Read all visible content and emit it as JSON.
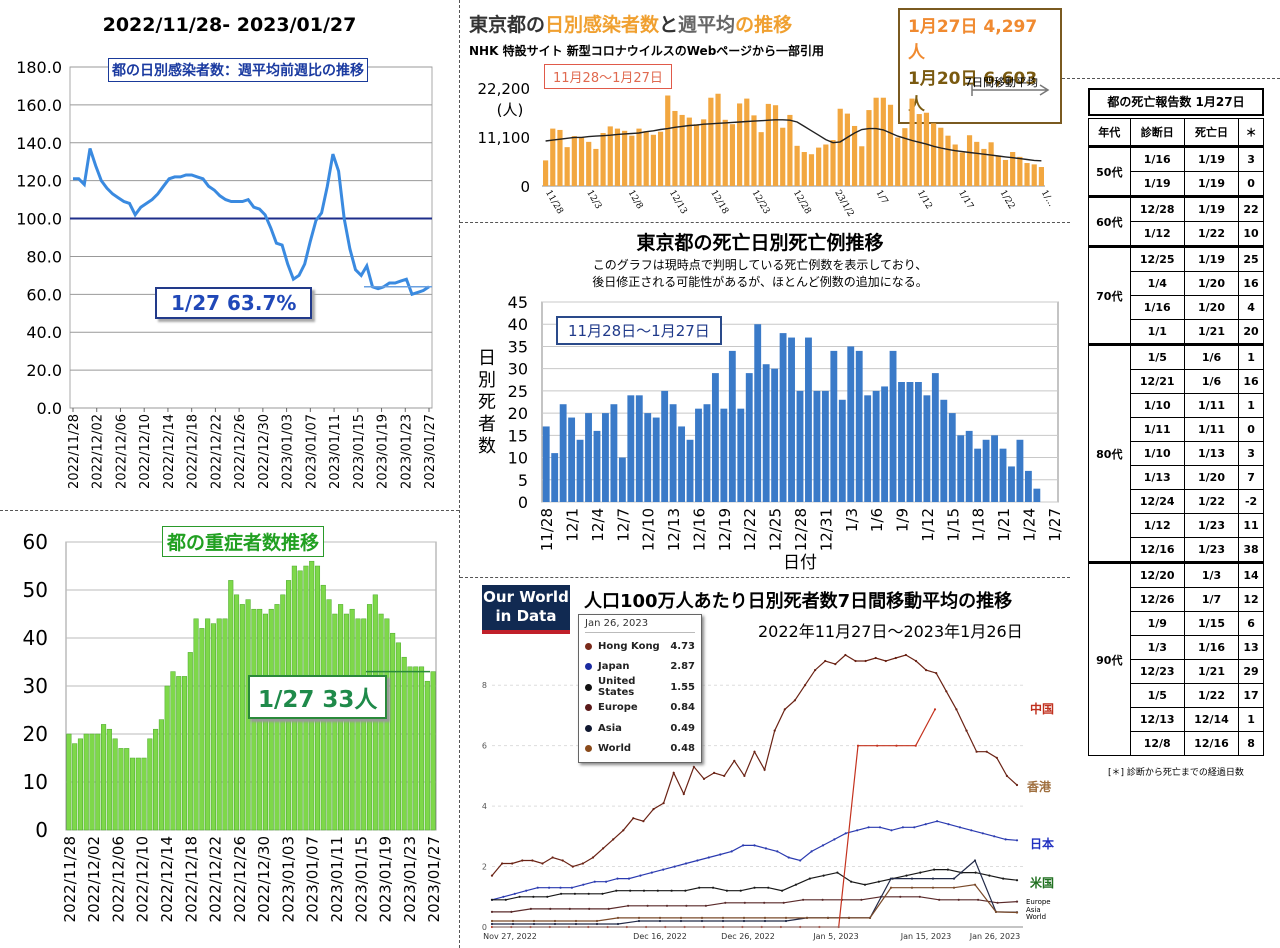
{
  "header": {
    "date_range": "2022/11/28- 2023/01/27"
  },
  "panel_ratio": {
    "inner_title": "都の日別感染者数：週平均前週比の推移",
    "annotation": "1/27 63.7%",
    "chart_data": {
      "type": "line",
      "title": "都の日別感染者数：週平均前週比の推移",
      "ylim": [
        0,
        180
      ],
      "yticks": [
        "0.0",
        "20.0",
        "40.0",
        "60.0",
        "80.0",
        "100.0",
        "120.0",
        "140.0",
        "160.0",
        "180.0"
      ],
      "xlabels": [
        "2022/11/28",
        "2022/12/02",
        "2022/12/06",
        "2022/12/10",
        "2022/12/14",
        "2022/12/18",
        "2022/12/22",
        "2022/12/26",
        "2022/12/30",
        "2023/01/03",
        "2023/01/07",
        "2023/01/11",
        "2023/01/15",
        "2023/01/19",
        "2023/01/23",
        "2023/01/27"
      ],
      "reference_line": 100,
      "values": [
        121,
        121,
        118,
        137,
        128,
        120,
        116,
        113,
        111,
        109,
        108,
        102,
        106,
        108,
        110,
        113,
        117,
        121,
        122,
        122,
        123,
        123,
        122,
        121,
        117,
        115,
        112,
        110,
        109,
        109,
        109,
        110,
        106,
        105,
        102,
        95,
        87,
        86,
        76,
        68,
        70,
        76,
        88,
        99,
        103,
        117,
        134,
        125,
        100,
        84,
        73,
        70,
        75,
        64,
        63,
        64,
        66,
        66,
        67,
        68,
        60,
        61,
        62,
        64
      ]
    }
  },
  "panel_severe": {
    "inner_title": "都の重症者数推移",
    "annotation": "1/27 33人",
    "chart_data": {
      "type": "bar",
      "title": "都の重症者数推移",
      "ylim": [
        0,
        60
      ],
      "yticks": [
        "0",
        "10",
        "20",
        "30",
        "40",
        "50",
        "60"
      ],
      "xlabels": [
        "2022/11/28",
        "2022/12/02",
        "2022/12/06",
        "2022/12/10",
        "2022/12/14",
        "2022/12/18",
        "2022/12/22",
        "2022/12/26",
        "2022/12/30",
        "2023/01/03",
        "2023/01/07",
        "2023/01/11",
        "2023/01/15",
        "2023/01/19",
        "2023/01/23",
        "2023/01/27"
      ],
      "values": [
        20,
        18,
        19,
        20,
        20,
        20,
        22,
        21,
        19,
        17,
        17,
        15,
        15,
        15,
        19,
        21,
        23,
        30,
        33,
        32,
        32,
        37,
        44,
        42,
        44,
        43,
        44,
        44,
        52,
        49,
        47,
        48,
        46,
        46,
        45,
        46,
        47,
        49,
        52,
        55,
        54,
        55,
        56,
        55,
        51,
        48,
        45,
        47,
        45,
        46,
        44,
        44,
        47,
        49,
        45,
        44,
        41,
        39,
        36,
        34,
        34,
        34,
        31,
        33
      ]
    }
  },
  "panel_cases": {
    "title_part1": "東京都の",
    "title_part2": "日別感染者数",
    "title_part3": "と",
    "title_part4": "週平均",
    "title_part5": "の推移",
    "subtitle": "NHK 特設サイト 新型コロナウイルスのWebページから一部引用",
    "range_label": "11月28～1月27日",
    "legend_avg": "7日間移動平均",
    "callout_line1": "1月27日 4,297人",
    "callout_line2": "1月20日 6,603人",
    "chart_data": {
      "type": "bar",
      "title": "東京都の日別感染者数と週平均の推移",
      "yticks": [
        "0",
        "11,100",
        "22,200"
      ],
      "ylabel": "(人)",
      "ylim": [
        0,
        22200
      ],
      "xlabels": [
        "11/28",
        "12/3",
        "12/8",
        "12/13",
        "12/18",
        "12/23",
        "12/28",
        "23/1/2",
        "1/7",
        "1/12",
        "1/17",
        "1/22",
        "1/..."
      ],
      "values": [
        5800,
        13000,
        12700,
        8800,
        11300,
        11100,
        10000,
        8400,
        12000,
        13500,
        13000,
        12500,
        11400,
        13000,
        12400,
        11600,
        12300,
        20500,
        17000,
        16100,
        15500,
        14000,
        15100,
        20000,
        20900,
        15000,
        14000,
        18700,
        19800,
        16000,
        12200,
        18600,
        18300,
        13200,
        16100,
        9100,
        7700,
        7200,
        8700,
        9400,
        10400,
        17500,
        16400,
        13600,
        9000,
        17200,
        20000,
        20000,
        18400,
        11000,
        13100,
        19800,
        16300,
        16600,
        14200,
        13200,
        11400,
        9400,
        7600,
        11500,
        10000,
        8400,
        9900,
        6900,
        5900,
        7700,
        6600,
        5200,
        4900,
        4300
      ],
      "average": [
        10200,
        10400,
        10600,
        10800,
        11000,
        11000,
        11200,
        11300,
        11400,
        11500,
        11700,
        11800,
        11900,
        12000,
        12300,
        12500,
        12800,
        13000,
        13300,
        13500,
        13700,
        13800,
        14000,
        14100,
        14200,
        14300,
        14400,
        14500,
        14600,
        14700,
        14800,
        14900,
        15000,
        15000,
        14900,
        14500,
        13500,
        12500,
        11500,
        10500,
        9800,
        10000,
        11000,
        12000,
        12800,
        13000,
        13000,
        12700,
        12000,
        11300,
        10800,
        10300,
        9900,
        9500,
        9000,
        8600,
        8300,
        8000,
        7800,
        7600,
        7400,
        7200,
        7000,
        6800,
        6600,
        6400,
        6200,
        6000,
        5800,
        5700
      ]
    }
  },
  "panel_deaths_daily": {
    "title": "東京都の死亡日別死亡例推移",
    "note_line1": "このグラフは現時点で判明している死亡例数を表示しており、",
    "note_line2": "後日修正される可能性があるが、ほとんど例数の追加になる。",
    "range_label": "11月28日～1月27日",
    "chart_data": {
      "type": "bar",
      "title": "東京都の死亡日別死亡例推移",
      "xlabel": "日付",
      "ylabel": "日別死者数",
      "ylim": [
        0,
        45
      ],
      "yticks": [
        "0",
        "5",
        "10",
        "15",
        "20",
        "25",
        "30",
        "35",
        "40",
        "45"
      ],
      "xlabels": [
        "11/28",
        "12/1",
        "12/4",
        "12/7",
        "12/10",
        "12/13",
        "12/16",
        "12/19",
        "12/22",
        "12/25",
        "12/28",
        "12/31",
        "1/3",
        "1/6",
        "1/9",
        "1/12",
        "1/15",
        "1/18",
        "1/21",
        "1/24",
        "1/27"
      ],
      "values": [
        17,
        11,
        22,
        19,
        14,
        20,
        16,
        20,
        22,
        10,
        24,
        24,
        20,
        19,
        25,
        22,
        17,
        14,
        21,
        22,
        29,
        21,
        34,
        21,
        29,
        40,
        31,
        30,
        38,
        37,
        25,
        37,
        25,
        25,
        34,
        23,
        35,
        34,
        24,
        25,
        26,
        34,
        27,
        27,
        27,
        24,
        29,
        23,
        20,
        15,
        16,
        12,
        14,
        15,
        12,
        8,
        14,
        7,
        3,
        0,
        0
      ]
    }
  },
  "panel_owid": {
    "logo_line1": "Our World",
    "logo_line2": "in Data",
    "title": "人口100万人あたり日別死者数7日間移動平均の推移",
    "subtitle": "2022年11月27日～2023年1月26日",
    "tooltip_date": "Jan 26, 2023",
    "legend": [
      {
        "name": "Hong Kong",
        "value": "4.73",
        "color": "#7a2a1a"
      },
      {
        "name": "Japan",
        "value": "2.87",
        "color": "#1a2aa0"
      },
      {
        "name": "United States",
        "value": "1.55",
        "color": "#111111"
      },
      {
        "name": "Europe",
        "value": "0.84",
        "color": "#5a1a1a"
      },
      {
        "name": "Asia",
        "value": "0.49",
        "color": "#101830"
      },
      {
        "name": "World",
        "value": "0.48",
        "color": "#8a4a1a"
      }
    ],
    "labels": {
      "china": "中国",
      "hongkong": "香港",
      "japan": "日本",
      "us": "米国",
      "europe": "Europe",
      "asia": "Asia",
      "world": "World"
    },
    "chart_data": {
      "type": "line",
      "title": "人口100万人あたり日別死者数7日間移動平均の推移",
      "yticks": [
        "0",
        "2",
        "4",
        "6",
        "8"
      ],
      "ylim": [
        0,
        9
      ],
      "xlabels": [
        "Nov 27, 2022",
        "Dec 16, 2022",
        "Dec 26, 2022",
        "Jan 5, 2023",
        "Jan 15, 2023",
        "Jan 26, 2023"
      ],
      "series": [
        {
          "name": "Hong Kong",
          "values": [
            1.7,
            2.1,
            2.1,
            2.2,
            2.2,
            2.1,
            2.3,
            2.2,
            2.0,
            2.1,
            2.3,
            2.6,
            2.9,
            3.2,
            3.6,
            3.5,
            3.9,
            4.1,
            5.1,
            4.4,
            5.3,
            4.9,
            5.1,
            5.0,
            5.5,
            5.0,
            5.8,
            5.2,
            6.5,
            7.2,
            7.5,
            8.0,
            8.5,
            8.8,
            8.7,
            9.0,
            8.8,
            8.8,
            8.9,
            8.8,
            8.9,
            9.0,
            8.8,
            8.5,
            8.4,
            7.8,
            7.2,
            6.5,
            5.8,
            5.8,
            5.6,
            5.0,
            4.7
          ]
        },
        {
          "name": "Japan",
          "values": [
            0.9,
            1.0,
            1.1,
            1.2,
            1.3,
            1.3,
            1.3,
            1.3,
            1.4,
            1.5,
            1.5,
            1.6,
            1.6,
            1.7,
            1.8,
            1.9,
            2.0,
            2.1,
            2.2,
            2.3,
            2.4,
            2.5,
            2.7,
            2.7,
            2.6,
            2.5,
            2.3,
            2.2,
            2.5,
            2.7,
            2.9,
            3.1,
            3.2,
            3.3,
            3.3,
            3.2,
            3.3,
            3.3,
            3.4,
            3.5,
            3.4,
            3.3,
            3.2,
            3.1,
            3.0,
            2.9,
            2.87
          ]
        },
        {
          "name": "United States",
          "values": [
            0.9,
            0.9,
            1.0,
            1.0,
            1.0,
            1.1,
            1.1,
            1.1,
            1.1,
            1.2,
            1.2,
            1.2,
            1.2,
            1.2,
            1.2,
            1.3,
            1.3,
            1.2,
            1.2,
            1.3,
            1.3,
            1.2,
            1.4,
            1.6,
            1.7,
            1.8,
            1.5,
            1.4,
            1.5,
            1.6,
            1.7,
            1.8,
            1.9,
            1.9,
            1.8,
            1.8,
            1.7,
            1.6,
            1.55
          ]
        },
        {
          "name": "Europe",
          "values": [
            0.5,
            0.5,
            0.6,
            0.6,
            0.6,
            0.6,
            0.6,
            0.7,
            0.7,
            0.7,
            0.7,
            0.7,
            0.8,
            0.8,
            0.8,
            0.8,
            0.9,
            0.9,
            0.9,
            0.9,
            1.0,
            1.0,
            1.0,
            0.9,
            0.9,
            0.9,
            0.8,
            0.84
          ]
        },
        {
          "name": "Asia",
          "values": [
            0.1,
            0.1,
            0.1,
            0.1,
            0.1,
            0.1,
            0.1,
            0.2,
            0.2,
            0.2,
            0.2,
            0.2,
            0.2,
            0.2,
            0.2,
            0.3,
            0.3,
            0.3,
            0.3,
            1.6,
            1.6,
            1.6,
            1.6,
            2.2,
            0.5,
            0.49
          ]
        },
        {
          "name": "World",
          "values": [
            0.2,
            0.2,
            0.2,
            0.2,
            0.2,
            0.2,
            0.3,
            0.3,
            0.3,
            0.3,
            0.3,
            0.3,
            0.3,
            0.3,
            0.3,
            0.3,
            0.3,
            0.3,
            0.3,
            1.3,
            1.3,
            1.3,
            1.3,
            1.4,
            0.5,
            0.48
          ]
        },
        {
          "name": "China",
          "values": [
            0.0,
            0.0,
            0.0,
            0.0,
            0.0,
            0.0,
            0.0,
            0.0,
            0.0,
            0.0,
            0.0,
            0.0,
            0.0,
            0.0,
            0.0,
            0.0,
            0.0,
            0.0,
            0.0,
            6.0,
            6.0,
            6.0,
            6.0,
            7.2
          ]
        }
      ]
    }
  },
  "deaths_table": {
    "title": "都の死亡報告数 1月27日",
    "headers": [
      "年代",
      "診断日",
      "死亡日",
      "＊"
    ],
    "groups": [
      {
        "age": "50代",
        "rows": [
          [
            "1/16",
            "1/19",
            "3"
          ],
          [
            "1/19",
            "1/19",
            "0"
          ]
        ]
      },
      {
        "age": "60代",
        "rows": [
          [
            "12/28",
            "1/19",
            "22"
          ],
          [
            "1/12",
            "1/22",
            "10"
          ]
        ]
      },
      {
        "age": "70代",
        "rows": [
          [
            "12/25",
            "1/19",
            "25"
          ],
          [
            "1/4",
            "1/20",
            "16"
          ],
          [
            "1/16",
            "1/20",
            "4"
          ],
          [
            "1/1",
            "1/21",
            "20"
          ]
        ]
      },
      {
        "age": "80代",
        "rows": [
          [
            "1/5",
            "1/6",
            "1"
          ],
          [
            "12/21",
            "1/6",
            "16"
          ],
          [
            "1/10",
            "1/11",
            "1"
          ],
          [
            "1/11",
            "1/11",
            "0"
          ],
          [
            "1/10",
            "1/13",
            "3"
          ],
          [
            "1/13",
            "1/20",
            "7"
          ],
          [
            "12/24",
            "1/22",
            "-2"
          ],
          [
            "1/12",
            "1/23",
            "11"
          ],
          [
            "12/16",
            "1/23",
            "38"
          ]
        ]
      },
      {
        "age": "90代",
        "rows": [
          [
            "12/20",
            "1/3",
            "14"
          ],
          [
            "12/26",
            "1/7",
            "12"
          ],
          [
            "1/9",
            "1/15",
            "6"
          ],
          [
            "1/3",
            "1/16",
            "13"
          ],
          [
            "12/23",
            "1/21",
            "29"
          ],
          [
            "1/5",
            "1/22",
            "17"
          ],
          [
            "12/13",
            "12/14",
            "1"
          ],
          [
            "12/8",
            "12/16",
            "8"
          ]
        ]
      }
    ],
    "footnote": "[＊] 診断から死亡までの経過日数"
  }
}
